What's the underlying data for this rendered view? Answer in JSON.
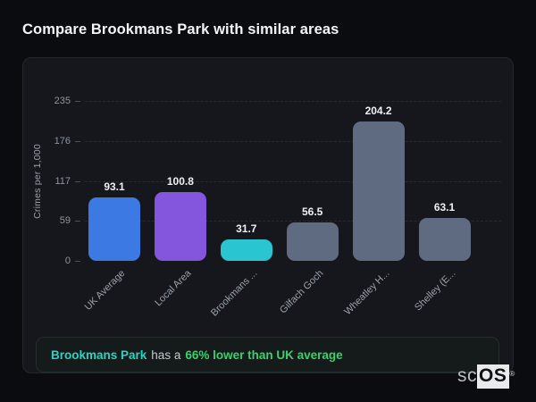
{
  "page": {
    "title": "Compare Brookmans Park with similar areas"
  },
  "chart_data": {
    "type": "bar",
    "title": "",
    "categories": [
      "UK Average",
      "Local Area",
      "Brookmans ...",
      "Gilfach Goch",
      "Wheatley H...",
      "Shelley (E..."
    ],
    "values": [
      93.1,
      100.8,
      31.7,
      56.5,
      204.2,
      63.1
    ],
    "value_labels": [
      "93.1",
      "100.8",
      "31.7",
      "56.5",
      "204.2",
      "63.1"
    ],
    "bar_colors": [
      "#3d79e2",
      "#8456dd",
      "#29c5d1",
      "#5f6b81",
      "#5f6b81",
      "#5f6b81"
    ],
    "xlabel": "",
    "ylabel": "Crimes per 1,000",
    "yticks": [
      0,
      59,
      117,
      176,
      235
    ],
    "ylim": [
      0,
      235
    ],
    "grid": "dashed-horizontal",
    "legend_position": "none",
    "x_label_rotation_deg": -45
  },
  "footer": {
    "area_name": "Brookmans Park",
    "connector": "has a",
    "highlight": "66% lower than UK average",
    "area_name_color": "#2bd4c3",
    "highlight_color": "#3bd06c"
  },
  "logo": {
    "prefix": "sc",
    "suffix": "OS",
    "registered": "®"
  },
  "colors": {
    "page_background": "#0b0c10",
    "card_background": "#15171c",
    "card_border": "#24262d",
    "gridline": "#272a32",
    "tick_text": "#8e95a0",
    "value_text": "#eef0f3"
  }
}
